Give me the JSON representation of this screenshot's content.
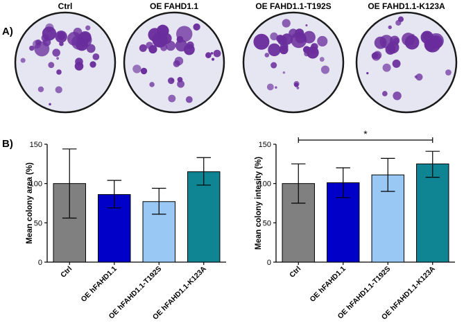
{
  "panels": {
    "a": "A)",
    "b": "B)"
  },
  "plates": [
    {
      "title": "Ctrl"
    },
    {
      "title": "OE FAHD1.1"
    },
    {
      "title": "OE FAHD1.1-T192S"
    },
    {
      "title": "OE FAHD1.1-K123A"
    }
  ],
  "colors": {
    "Ctrl": "#808080",
    "OE hFAHD1.1": "#0000c8",
    "OE hFAHD1.1-T192S": "#99c8f5",
    "OE hFAHD1.1-K123A": "#0f8594",
    "stain": "#6a2d9c",
    "plate_bg": "#e6e6f2"
  },
  "chart_data": [
    {
      "type": "bar",
      "categories": [
        "Ctrl",
        "OE hFAHD1.1",
        "OE hFAHD1.1-T192S",
        "OE hFAHD1.1-K123A"
      ],
      "values": [
        100,
        86,
        77,
        115
      ],
      "error_low": [
        56,
        69,
        61,
        98
      ],
      "error_high": [
        144,
        104,
        94,
        133
      ],
      "ylabel": "Mean colony area (%)",
      "ylim": [
        0,
        150
      ],
      "yticks": [
        0,
        50,
        100,
        150
      ],
      "grid": false
    },
    {
      "type": "bar",
      "categories": [
        "Ctrl",
        "OE hFAHD1.1",
        "OE hFAHD1.1-T192S",
        "OE hFAHD1.1-K123A"
      ],
      "values": [
        100,
        101,
        111,
        125
      ],
      "error_low": [
        75,
        82,
        90,
        108
      ],
      "error_high": [
        125,
        120,
        132,
        141
      ],
      "ylabel": "Mean colony intesity (%)",
      "ylim": [
        0,
        150
      ],
      "yticks": [
        0,
        50,
        100,
        150
      ],
      "grid": false,
      "annotation": {
        "text": "*",
        "from": "Ctrl",
        "to": "OE hFAHD1.1-K123A"
      }
    }
  ]
}
